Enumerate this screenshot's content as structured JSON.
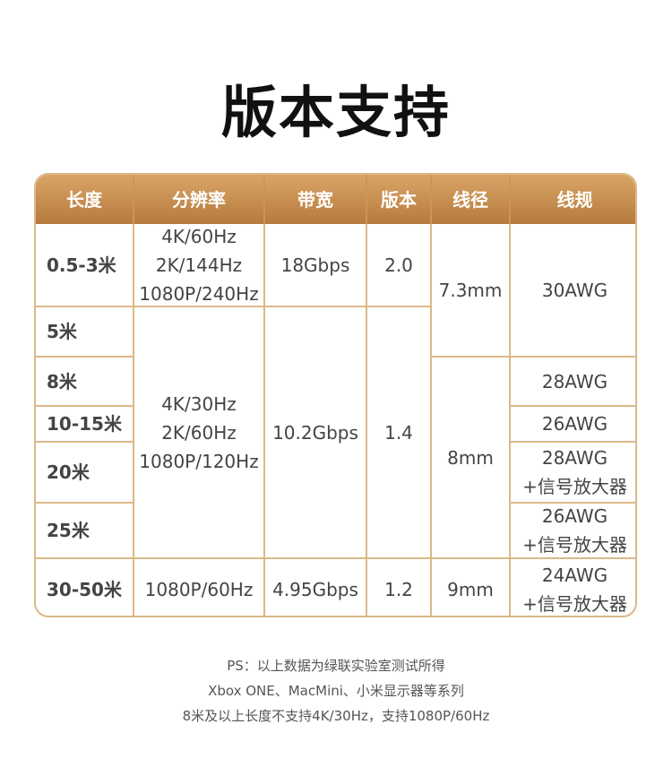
{
  "title": "版本支持",
  "headers": [
    "长度",
    "分辨率",
    "带宽",
    "版本",
    "线径",
    "线规"
  ],
  "lengths": [
    "0.5-3米",
    "5米",
    "8米",
    "10-15米",
    "20米",
    "25米",
    "30-50米"
  ],
  "resolution": [
    [
      "4K/60Hz",
      "2K/144Hz",
      "1080P/240Hz"
    ],
    [
      "4K/30Hz",
      "2K/60Hz",
      "1080P/120Hz"
    ],
    [
      "1080P/60Hz"
    ]
  ],
  "bandwidth": [
    "18Gbps",
    "10.2Gbps",
    "4.95Gbps"
  ],
  "version": [
    "2.0",
    "1.4",
    "1.2"
  ],
  "diameter": [
    "7.3mm",
    "8mm",
    "9mm"
  ],
  "gauge": [
    [
      "30AWG"
    ],
    [
      "28AWG"
    ],
    [
      "26AWG"
    ],
    [
      "28AWG",
      "+信号放大器"
    ],
    [
      "26AWG",
      "+信号放大器"
    ],
    [
      "24AWG",
      "+信号放大器"
    ]
  ],
  "footer": [
    "PS：以上数据为绿联实验室测试所得",
    "Xbox ONE、MacMini、小米显示器等系列",
    "8米及以上长度不支持4K/30Hz，支持1080P/60Hz"
  ],
  "colors": {
    "header": "#c48a4c",
    "border": "#dcb888"
  }
}
